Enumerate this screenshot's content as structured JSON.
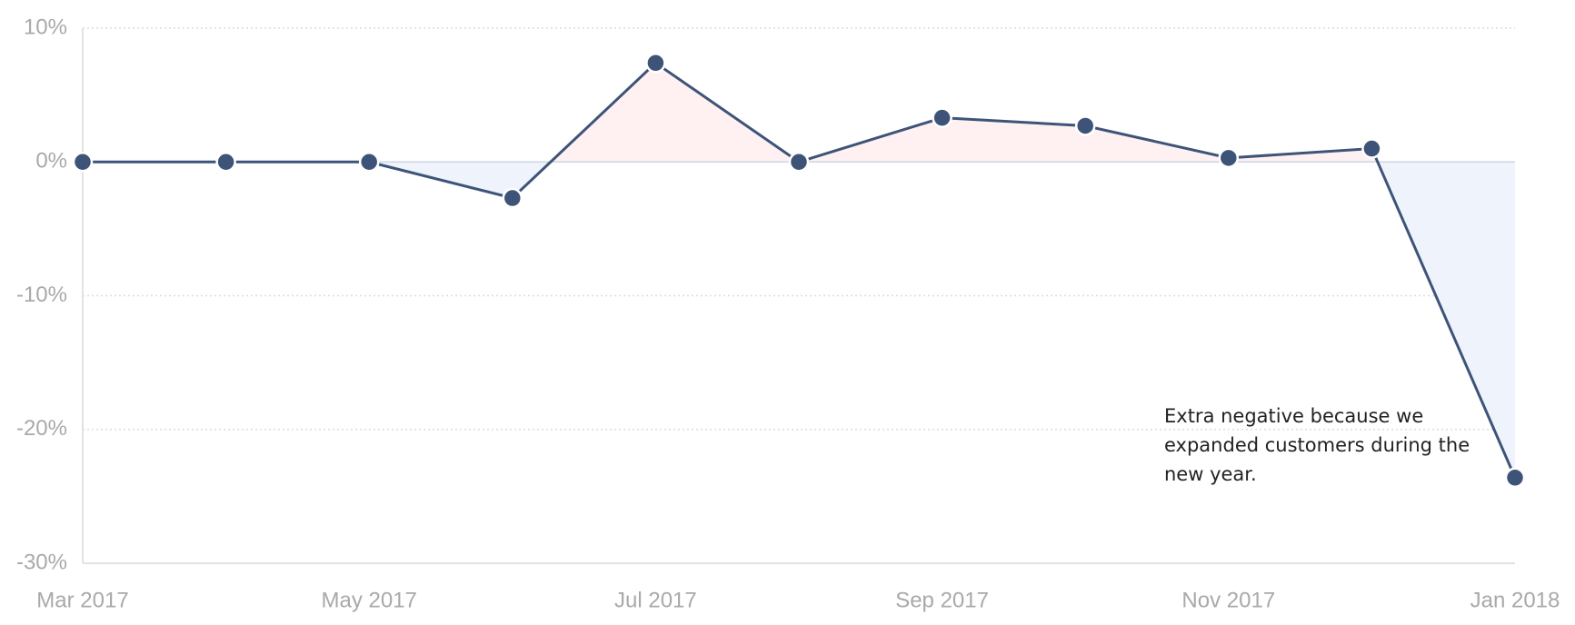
{
  "chart_data": {
    "type": "line",
    "categories": [
      "Mar 2017",
      null,
      "May 2017",
      null,
      "Jul 2017",
      null,
      "Sep 2017",
      null,
      "Nov 2017",
      null,
      "Jan 2018"
    ],
    "series": [
      {
        "color": "#3d5478",
        "values": [
          0,
          0,
          0,
          -2.7,
          7.4,
          0,
          3.3,
          2.7,
          0.3,
          1.0,
          -23.6
        ]
      }
    ],
    "positive_fill": "#fff0f1",
    "negative_fill": "#eef3fc",
    "ylim": [
      -30,
      10
    ],
    "yticks": [
      {
        "value": -30,
        "label": "-30%"
      },
      {
        "value": -20,
        "label": "-20%"
      },
      {
        "value": -10,
        "label": "-10%"
      },
      {
        "value": 0,
        "label": "0%"
      },
      {
        "value": 10,
        "label": "10%"
      }
    ],
    "grid": true,
    "annotation": "Extra negative because we expanded customers during the new year."
  }
}
